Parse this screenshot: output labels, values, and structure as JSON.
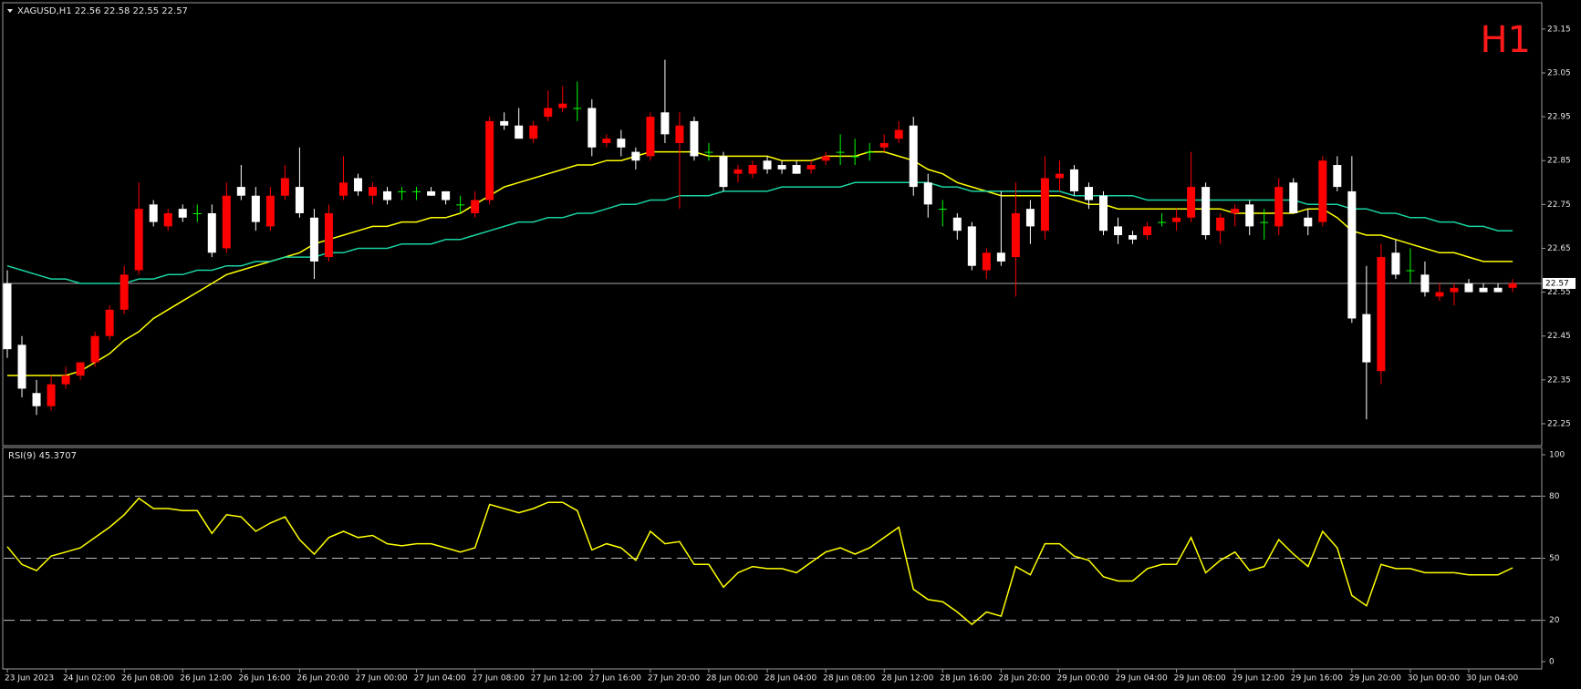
{
  "chart_data": {
    "type": "candlestick",
    "header": "XAGUSD,H1  22.56 22.58 22.55 22.57",
    "timeframe": "H1",
    "last_price": 22.57,
    "ylim": [
      22.2,
      23.21
    ],
    "yticks": [
      22.25,
      22.35,
      22.45,
      22.55,
      22.65,
      22.75,
      22.85,
      22.95,
      23.05,
      23.15
    ],
    "up_color": "#ff0000",
    "down_color": "#ffffff",
    "doji_color": "#00ff00",
    "x_labels": [
      "23 Jun 2023",
      "24 Jun 02:00",
      "26 Jun 08:00",
      "26 Jun 12:00",
      "26 Jun 16:00",
      "26 Jun 20:00",
      "27 Jun 00:00",
      "27 Jun 04:00",
      "27 Jun 08:00",
      "27 Jun 12:00",
      "27 Jun 16:00",
      "27 Jun 20:00",
      "28 Jun 00:00",
      "28 Jun 04:00",
      "28 Jun 08:00",
      "28 Jun 12:00",
      "28 Jun 16:00",
      "28 Jun 20:00",
      "29 Jun 00:00",
      "29 Jun 04:00",
      "29 Jun 08:00",
      "29 Jun 12:00",
      "29 Jun 16:00",
      "29 Jun 20:00",
      "30 Jun 00:00",
      "30 Jun 04:00"
    ],
    "ohlc": [
      [
        22.57,
        22.6,
        22.4,
        22.42
      ],
      [
        22.43,
        22.45,
        22.31,
        22.33
      ],
      [
        22.32,
        22.35,
        22.27,
        22.29
      ],
      [
        22.29,
        22.36,
        22.28,
        22.34
      ],
      [
        22.34,
        22.38,
        22.33,
        22.36
      ],
      [
        22.36,
        22.39,
        22.35,
        22.39
      ],
      [
        22.39,
        22.46,
        22.38,
        22.45
      ],
      [
        22.45,
        22.52,
        22.44,
        22.51
      ],
      [
        22.51,
        22.61,
        22.5,
        22.59
      ],
      [
        22.6,
        22.8,
        22.59,
        22.74
      ],
      [
        22.75,
        22.76,
        22.7,
        22.71
      ],
      [
        22.7,
        22.74,
        22.69,
        22.73
      ],
      [
        22.74,
        22.75,
        22.71,
        22.72
      ],
      [
        22.73,
        22.75,
        22.71,
        22.73
      ],
      [
        22.73,
        22.75,
        22.63,
        22.64
      ],
      [
        22.65,
        22.8,
        22.64,
        22.77
      ],
      [
        22.79,
        22.84,
        22.76,
        22.77
      ],
      [
        22.77,
        22.79,
        22.69,
        22.71
      ],
      [
        22.7,
        22.79,
        22.69,
        22.77
      ],
      [
        22.77,
        22.84,
        22.76,
        22.81
      ],
      [
        22.79,
        22.88,
        22.72,
        22.73
      ],
      [
        22.72,
        22.74,
        22.58,
        22.62
      ],
      [
        22.63,
        22.75,
        22.62,
        22.73
      ],
      [
        22.77,
        22.86,
        22.76,
        22.8
      ],
      [
        22.81,
        22.82,
        22.77,
        22.78
      ],
      [
        22.77,
        22.8,
        22.75,
        22.79
      ],
      [
        22.78,
        22.79,
        22.75,
        22.76
      ],
      [
        22.78,
        22.79,
        22.76,
        22.78
      ],
      [
        22.78,
        22.79,
        22.76,
        22.78
      ],
      [
        22.78,
        22.79,
        22.77,
        22.77
      ],
      [
        22.78,
        22.78,
        22.75,
        22.76
      ],
      [
        22.75,
        22.77,
        22.73,
        22.75
      ],
      [
        22.73,
        22.78,
        22.72,
        22.76
      ],
      [
        22.76,
        22.95,
        22.75,
        22.94
      ],
      [
        22.94,
        22.96,
        22.92,
        22.93
      ],
      [
        22.93,
        22.97,
        22.9,
        22.9
      ],
      [
        22.9,
        22.94,
        22.89,
        22.93
      ],
      [
        22.95,
        23.01,
        22.94,
        22.97
      ],
      [
        22.97,
        23.02,
        22.96,
        22.98
      ],
      [
        22.97,
        23.03,
        22.94,
        22.97
      ],
      [
        22.97,
        22.99,
        22.86,
        22.88
      ],
      [
        22.89,
        22.91,
        22.88,
        22.9
      ],
      [
        22.9,
        22.92,
        22.86,
        22.88
      ],
      [
        22.87,
        22.88,
        22.83,
        22.85
      ],
      [
        22.86,
        22.96,
        22.85,
        22.95
      ],
      [
        22.96,
        23.08,
        22.89,
        22.91
      ],
      [
        22.89,
        22.96,
        22.74,
        22.93
      ],
      [
        22.94,
        22.95,
        22.85,
        22.86
      ],
      [
        22.87,
        22.89,
        22.85,
        22.87
      ],
      [
        22.86,
        22.87,
        22.78,
        22.79
      ],
      [
        22.82,
        22.84,
        22.8,
        22.83
      ],
      [
        22.82,
        22.85,
        22.81,
        22.84
      ],
      [
        22.85,
        22.86,
        22.82,
        22.83
      ],
      [
        22.84,
        22.85,
        22.82,
        22.83
      ],
      [
        22.84,
        22.85,
        22.82,
        22.82
      ],
      [
        22.83,
        22.85,
        22.82,
        22.84
      ],
      [
        22.85,
        22.87,
        22.84,
        22.86
      ],
      [
        22.87,
        22.91,
        22.84,
        22.87
      ],
      [
        22.86,
        22.9,
        22.84,
        22.86
      ],
      [
        22.87,
        22.89,
        22.85,
        22.87
      ],
      [
        22.88,
        22.91,
        22.87,
        22.89
      ],
      [
        22.9,
        22.94,
        22.89,
        22.92
      ],
      [
        22.93,
        22.95,
        22.77,
        22.79
      ],
      [
        22.8,
        22.82,
        22.72,
        22.75
      ],
      [
        22.74,
        22.76,
        22.7,
        22.74
      ],
      [
        22.72,
        22.73,
        22.67,
        22.69
      ],
      [
        22.7,
        22.71,
        22.6,
        22.61
      ],
      [
        22.6,
        22.65,
        22.58,
        22.64
      ],
      [
        22.64,
        22.78,
        22.61,
        22.62
      ],
      [
        22.63,
        22.8,
        22.54,
        22.73
      ],
      [
        22.74,
        22.76,
        22.66,
        22.7
      ],
      [
        22.69,
        22.86,
        22.67,
        22.81
      ],
      [
        22.81,
        22.85,
        22.78,
        22.82
      ],
      [
        22.83,
        22.84,
        22.77,
        22.78
      ],
      [
        22.79,
        22.8,
        22.74,
        22.76
      ],
      [
        22.77,
        22.78,
        22.68,
        22.69
      ],
      [
        22.7,
        22.72,
        22.66,
        22.68
      ],
      [
        22.68,
        22.69,
        22.66,
        22.67
      ],
      [
        22.68,
        22.71,
        22.67,
        22.7
      ],
      [
        22.71,
        22.73,
        22.7,
        22.71
      ],
      [
        22.71,
        22.74,
        22.69,
        22.72
      ],
      [
        22.72,
        22.87,
        22.71,
        22.79
      ],
      [
        22.79,
        22.8,
        22.67,
        22.68
      ],
      [
        22.69,
        22.73,
        22.66,
        22.72
      ],
      [
        22.73,
        22.75,
        22.7,
        22.74
      ],
      [
        22.75,
        22.76,
        22.68,
        22.7
      ],
      [
        22.71,
        22.74,
        22.67,
        22.71
      ],
      [
        22.7,
        22.81,
        22.68,
        22.79
      ],
      [
        22.8,
        22.81,
        22.73,
        22.73
      ],
      [
        22.72,
        22.74,
        22.68,
        22.7
      ],
      [
        22.71,
        22.86,
        22.7,
        22.85
      ],
      [
        22.84,
        22.86,
        22.78,
        22.79
      ],
      [
        22.78,
        22.86,
        22.48,
        22.49
      ],
      [
        22.5,
        22.61,
        22.26,
        22.39
      ],
      [
        22.37,
        22.66,
        22.34,
        22.63
      ],
      [
        22.64,
        22.67,
        22.58,
        22.59
      ],
      [
        22.6,
        22.65,
        22.57,
        22.6
      ],
      [
        22.59,
        22.62,
        22.54,
        22.55
      ],
      [
        22.54,
        22.57,
        22.53,
        22.55
      ],
      [
        22.55,
        22.57,
        22.52,
        22.56
      ],
      [
        22.57,
        22.58,
        22.55,
        22.55
      ],
      [
        22.56,
        22.57,
        22.55,
        22.55
      ],
      [
        22.56,
        22.57,
        22.55,
        22.55
      ],
      [
        22.56,
        22.58,
        22.55,
        22.57
      ]
    ],
    "moving_averages": [
      {
        "color": "#ffff00",
        "values": [
          22.36,
          22.36,
          22.36,
          22.36,
          22.36,
          22.37,
          22.39,
          22.41,
          22.44,
          22.46,
          22.49,
          22.51,
          22.53,
          22.55,
          22.57,
          22.59,
          22.6,
          22.61,
          22.62,
          22.63,
          22.64,
          22.66,
          22.67,
          22.68,
          22.69,
          22.7,
          22.7,
          22.71,
          22.71,
          22.72,
          22.72,
          22.73,
          22.75,
          22.77,
          22.79,
          22.8,
          22.81,
          22.82,
          22.83,
          22.84,
          22.84,
          22.85,
          22.85,
          22.86,
          22.87,
          22.87,
          22.87,
          22.87,
          22.86,
          22.86,
          22.86,
          22.86,
          22.86,
          22.85,
          22.85,
          22.85,
          22.86,
          22.86,
          22.86,
          22.87,
          22.87,
          22.86,
          22.85,
          22.83,
          22.82,
          22.8,
          22.79,
          22.78,
          22.77,
          22.77,
          22.77,
          22.77,
          22.77,
          22.76,
          22.75,
          22.75,
          22.74,
          22.74,
          22.74,
          22.74,
          22.74,
          22.74,
          22.74,
          22.74,
          22.73,
          22.73,
          22.73,
          22.73,
          22.73,
          22.74,
          22.74,
          22.72,
          22.69,
          22.68,
          22.68,
          22.67,
          22.66,
          22.65,
          22.64,
          22.64,
          22.63,
          22.62,
          22.62,
          22.62
        ]
      },
      {
        "color": "#19d3a2",
        "values": [
          22.61,
          22.6,
          22.59,
          22.58,
          22.58,
          22.57,
          22.57,
          22.57,
          22.57,
          22.58,
          22.58,
          22.59,
          22.59,
          22.6,
          22.6,
          22.61,
          22.61,
          22.62,
          22.62,
          22.63,
          22.63,
          22.63,
          22.64,
          22.64,
          22.65,
          22.65,
          22.65,
          22.66,
          22.66,
          22.66,
          22.67,
          22.67,
          22.68,
          22.69,
          22.7,
          22.71,
          22.71,
          22.72,
          22.72,
          22.73,
          22.73,
          22.74,
          22.75,
          22.75,
          22.76,
          22.76,
          22.77,
          22.77,
          22.77,
          22.78,
          22.78,
          22.78,
          22.78,
          22.79,
          22.79,
          22.79,
          22.79,
          22.79,
          22.8,
          22.8,
          22.8,
          22.8,
          22.8,
          22.8,
          22.79,
          22.79,
          22.78,
          22.78,
          22.78,
          22.78,
          22.78,
          22.78,
          22.78,
          22.77,
          22.77,
          22.77,
          22.77,
          22.77,
          22.76,
          22.76,
          22.76,
          22.76,
          22.76,
          22.76,
          22.76,
          22.76,
          22.76,
          22.76,
          22.76,
          22.75,
          22.75,
          22.75,
          22.74,
          22.74,
          22.73,
          22.73,
          22.72,
          22.72,
          22.71,
          22.71,
          22.7,
          22.7,
          22.69,
          22.69
        ]
      }
    ],
    "rsi": {
      "label": "RSI(9) 45.3707",
      "color": "#ffff00",
      "ylim": [
        0,
        100
      ],
      "yticks": [
        0,
        20,
        50,
        80,
        100
      ],
      "levels": [
        20,
        50,
        80
      ],
      "values": [
        55.6,
        47,
        44,
        51,
        53,
        55,
        60,
        65,
        71,
        79,
        74,
        74,
        73,
        73,
        62,
        71,
        70,
        63,
        67,
        70,
        59,
        52,
        60,
        63,
        60,
        61,
        57,
        56,
        57,
        57,
        55,
        53,
        55,
        76,
        74,
        72,
        74,
        77,
        77,
        73,
        54,
        57,
        55,
        49,
        63,
        57,
        58,
        47,
        47,
        36,
        43,
        46,
        45,
        45,
        43,
        48,
        53,
        55,
        52,
        55,
        60,
        65,
        35,
        30,
        29,
        24,
        18,
        24,
        22,
        46,
        42,
        57,
        57,
        51,
        49,
        41,
        39,
        39,
        45,
        47,
        47,
        60,
        43,
        49,
        53,
        44,
        46,
        59,
        52,
        46,
        63,
        55,
        32,
        27,
        47,
        45,
        45,
        43,
        43,
        43,
        42,
        42,
        42,
        45.37
      ]
    }
  }
}
